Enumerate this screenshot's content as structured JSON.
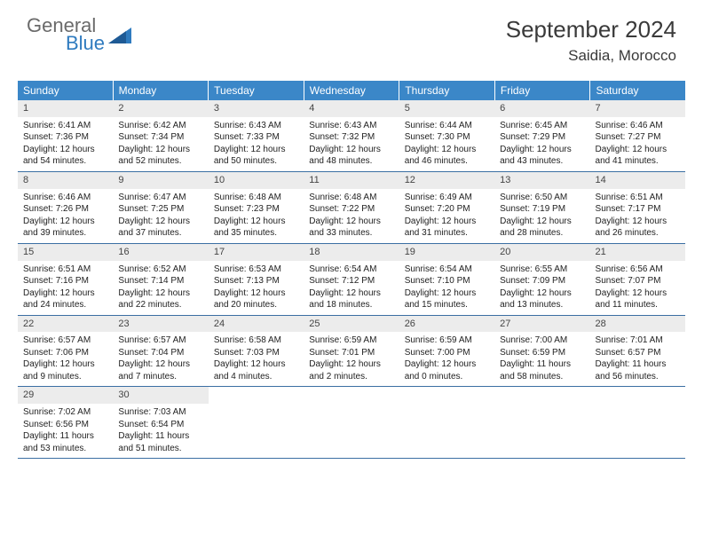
{
  "logo": {
    "word1": "General",
    "word2": "Blue"
  },
  "title": "September 2024",
  "location": "Saidia, Morocco",
  "colors": {
    "header_bg": "#3b87c8",
    "header_text": "#ffffff",
    "daynum_bg": "#ececec",
    "border": "#3b6fa3",
    "logo_gray": "#6a6a6a",
    "logo_blue": "#2f7bbf"
  },
  "weekdays": [
    "Sunday",
    "Monday",
    "Tuesday",
    "Wednesday",
    "Thursday",
    "Friday",
    "Saturday"
  ],
  "weeks": [
    [
      {
        "n": "1",
        "sr": "Sunrise: 6:41 AM",
        "ss": "Sunset: 7:36 PM",
        "dl": "Daylight: 12 hours and 54 minutes."
      },
      {
        "n": "2",
        "sr": "Sunrise: 6:42 AM",
        "ss": "Sunset: 7:34 PM",
        "dl": "Daylight: 12 hours and 52 minutes."
      },
      {
        "n": "3",
        "sr": "Sunrise: 6:43 AM",
        "ss": "Sunset: 7:33 PM",
        "dl": "Daylight: 12 hours and 50 minutes."
      },
      {
        "n": "4",
        "sr": "Sunrise: 6:43 AM",
        "ss": "Sunset: 7:32 PM",
        "dl": "Daylight: 12 hours and 48 minutes."
      },
      {
        "n": "5",
        "sr": "Sunrise: 6:44 AM",
        "ss": "Sunset: 7:30 PM",
        "dl": "Daylight: 12 hours and 46 minutes."
      },
      {
        "n": "6",
        "sr": "Sunrise: 6:45 AM",
        "ss": "Sunset: 7:29 PM",
        "dl": "Daylight: 12 hours and 43 minutes."
      },
      {
        "n": "7",
        "sr": "Sunrise: 6:46 AM",
        "ss": "Sunset: 7:27 PM",
        "dl": "Daylight: 12 hours and 41 minutes."
      }
    ],
    [
      {
        "n": "8",
        "sr": "Sunrise: 6:46 AM",
        "ss": "Sunset: 7:26 PM",
        "dl": "Daylight: 12 hours and 39 minutes."
      },
      {
        "n": "9",
        "sr": "Sunrise: 6:47 AM",
        "ss": "Sunset: 7:25 PM",
        "dl": "Daylight: 12 hours and 37 minutes."
      },
      {
        "n": "10",
        "sr": "Sunrise: 6:48 AM",
        "ss": "Sunset: 7:23 PM",
        "dl": "Daylight: 12 hours and 35 minutes."
      },
      {
        "n": "11",
        "sr": "Sunrise: 6:48 AM",
        "ss": "Sunset: 7:22 PM",
        "dl": "Daylight: 12 hours and 33 minutes."
      },
      {
        "n": "12",
        "sr": "Sunrise: 6:49 AM",
        "ss": "Sunset: 7:20 PM",
        "dl": "Daylight: 12 hours and 31 minutes."
      },
      {
        "n": "13",
        "sr": "Sunrise: 6:50 AM",
        "ss": "Sunset: 7:19 PM",
        "dl": "Daylight: 12 hours and 28 minutes."
      },
      {
        "n": "14",
        "sr": "Sunrise: 6:51 AM",
        "ss": "Sunset: 7:17 PM",
        "dl": "Daylight: 12 hours and 26 minutes."
      }
    ],
    [
      {
        "n": "15",
        "sr": "Sunrise: 6:51 AM",
        "ss": "Sunset: 7:16 PM",
        "dl": "Daylight: 12 hours and 24 minutes."
      },
      {
        "n": "16",
        "sr": "Sunrise: 6:52 AM",
        "ss": "Sunset: 7:14 PM",
        "dl": "Daylight: 12 hours and 22 minutes."
      },
      {
        "n": "17",
        "sr": "Sunrise: 6:53 AM",
        "ss": "Sunset: 7:13 PM",
        "dl": "Daylight: 12 hours and 20 minutes."
      },
      {
        "n": "18",
        "sr": "Sunrise: 6:54 AM",
        "ss": "Sunset: 7:12 PM",
        "dl": "Daylight: 12 hours and 18 minutes."
      },
      {
        "n": "19",
        "sr": "Sunrise: 6:54 AM",
        "ss": "Sunset: 7:10 PM",
        "dl": "Daylight: 12 hours and 15 minutes."
      },
      {
        "n": "20",
        "sr": "Sunrise: 6:55 AM",
        "ss": "Sunset: 7:09 PM",
        "dl": "Daylight: 12 hours and 13 minutes."
      },
      {
        "n": "21",
        "sr": "Sunrise: 6:56 AM",
        "ss": "Sunset: 7:07 PM",
        "dl": "Daylight: 12 hours and 11 minutes."
      }
    ],
    [
      {
        "n": "22",
        "sr": "Sunrise: 6:57 AM",
        "ss": "Sunset: 7:06 PM",
        "dl": "Daylight: 12 hours and 9 minutes."
      },
      {
        "n": "23",
        "sr": "Sunrise: 6:57 AM",
        "ss": "Sunset: 7:04 PM",
        "dl": "Daylight: 12 hours and 7 minutes."
      },
      {
        "n": "24",
        "sr": "Sunrise: 6:58 AM",
        "ss": "Sunset: 7:03 PM",
        "dl": "Daylight: 12 hours and 4 minutes."
      },
      {
        "n": "25",
        "sr": "Sunrise: 6:59 AM",
        "ss": "Sunset: 7:01 PM",
        "dl": "Daylight: 12 hours and 2 minutes."
      },
      {
        "n": "26",
        "sr": "Sunrise: 6:59 AM",
        "ss": "Sunset: 7:00 PM",
        "dl": "Daylight: 12 hours and 0 minutes."
      },
      {
        "n": "27",
        "sr": "Sunrise: 7:00 AM",
        "ss": "Sunset: 6:59 PM",
        "dl": "Daylight: 11 hours and 58 minutes."
      },
      {
        "n": "28",
        "sr": "Sunrise: 7:01 AM",
        "ss": "Sunset: 6:57 PM",
        "dl": "Daylight: 11 hours and 56 minutes."
      }
    ],
    [
      {
        "n": "29",
        "sr": "Sunrise: 7:02 AM",
        "ss": "Sunset: 6:56 PM",
        "dl": "Daylight: 11 hours and 53 minutes."
      },
      {
        "n": "30",
        "sr": "Sunrise: 7:03 AM",
        "ss": "Sunset: 6:54 PM",
        "dl": "Daylight: 11 hours and 51 minutes."
      },
      null,
      null,
      null,
      null,
      null
    ]
  ]
}
